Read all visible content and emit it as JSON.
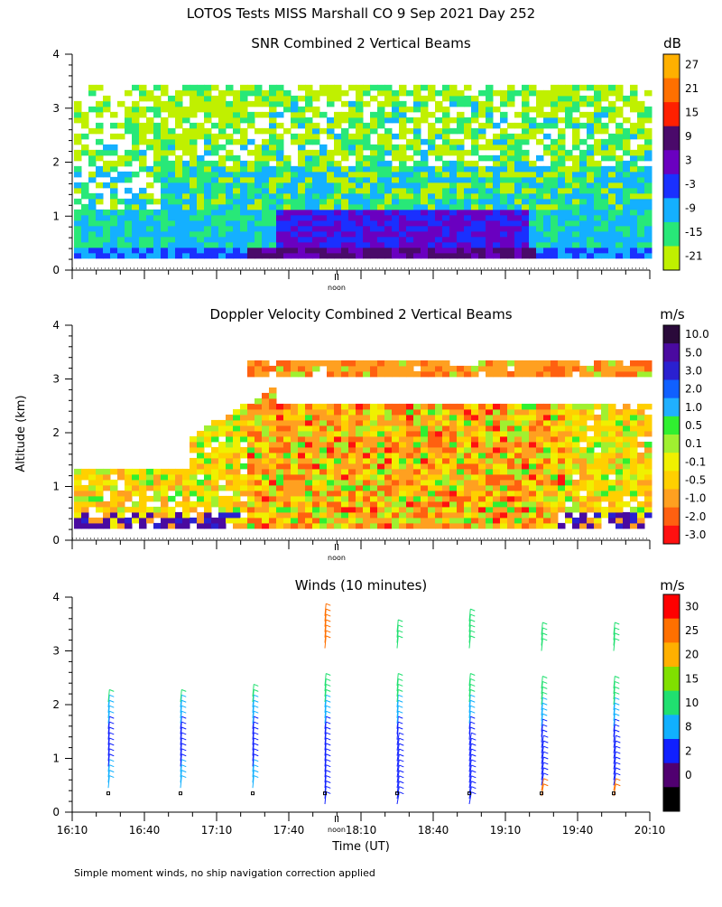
{
  "title": "LOTOS Tests MISS Marshall CO   9 Sep 2021 Day 252",
  "footnote": "Simple moment winds, no ship navigation correction applied",
  "ylabel": "Altitude (km)",
  "xlabel": "Time (UT)",
  "noon_label": "noon",
  "time_ticks": [
    "16:10",
    "16:40",
    "17:10",
    "17:40",
    "18:10",
    "18:40",
    "19:10",
    "19:40",
    "20:10"
  ],
  "chart_data": [
    {
      "type": "heatmap",
      "title": "SNR Combined 2 Vertical Beams",
      "unit": "dB",
      "ylim": [
        0,
        4
      ],
      "y_ticks": [
        0,
        1,
        2,
        3,
        4
      ],
      "colorbar_labels": [
        "27",
        "21",
        "15",
        "9",
        "3",
        "-3",
        "-9",
        "-15",
        "-21"
      ],
      "colors": [
        "#ffb000",
        "#ff7000",
        "#ff2000",
        "#4a0a6a",
        "#6a00c0",
        "#1a30ff",
        "#14b0ff",
        "#28e878",
        "#c0f000"
      ]
    },
    {
      "type": "heatmap",
      "title": "Doppler Velocity Combined 2 Vertical Beams",
      "unit": "m/s",
      "ylim": [
        0,
        4
      ],
      "y_ticks": [
        0,
        1,
        2,
        3,
        4
      ],
      "colorbar_labels": [
        "10.0",
        "5.0",
        "3.0",
        "2.0",
        "1.0",
        "0.5",
        "0.1",
        "-0.1",
        "-0.5",
        "-1.0",
        "-2.0",
        "-3.0"
      ],
      "colors": [
        "#2a0a3a",
        "#4a0aa0",
        "#2a20d0",
        "#1060ff",
        "#20b0ff",
        "#30f030",
        "#a0f030",
        "#f0f000",
        "#ffd000",
        "#ffa020",
        "#ff6010",
        "#ff1010"
      ]
    },
    {
      "type": "scatter",
      "title": "Winds (10 minutes)",
      "unit": "m/s",
      "ylim": [
        0,
        4
      ],
      "y_ticks": [
        0,
        1,
        2,
        3,
        4
      ],
      "colorbar_labels": [
        "30",
        "25",
        "20",
        "15",
        "10",
        "8",
        "2",
        "0"
      ],
      "colors": [
        "#ff0000",
        "#ff7000",
        "#ffb000",
        "#80e000",
        "#20e070",
        "#10b0ff",
        "#1020ff",
        "#500070",
        "#000000"
      ]
    }
  ]
}
